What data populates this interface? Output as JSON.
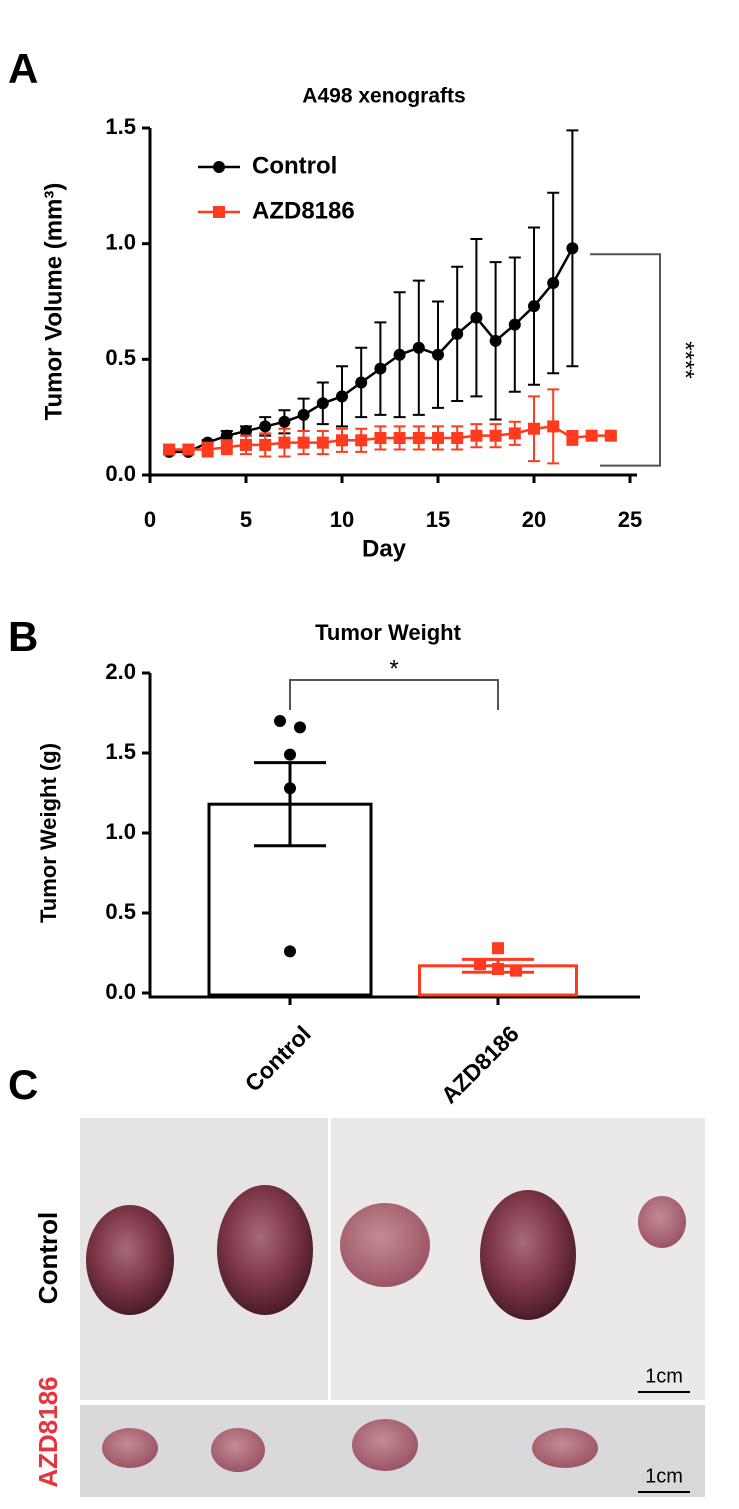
{
  "chart_data": [
    {
      "type": "line",
      "panel_label": "A",
      "title": "A498 xenografts",
      "xlabel": "Day",
      "ylabel": "Tumor Volume (mm³)",
      "x": [
        1,
        2,
        3,
        4,
        5,
        6,
        7,
        8,
        9,
        10,
        11,
        12,
        13,
        14,
        15,
        16,
        17,
        18,
        19,
        20,
        21,
        22,
        23,
        24
      ],
      "series": [
        {
          "name": "Control",
          "color": "#000000",
          "marker": "circle",
          "values": [
            0.1,
            0.1,
            0.14,
            0.17,
            0.19,
            0.21,
            0.23,
            0.26,
            0.31,
            0.34,
            0.4,
            0.46,
            0.52,
            0.55,
            0.52,
            0.61,
            0.68,
            0.58,
            0.65,
            0.73,
            0.83,
            0.98,
            null,
            null
          ],
          "errors": [
            0.01,
            0.01,
            0.01,
            0.02,
            0.02,
            0.04,
            0.05,
            0.07,
            0.09,
            0.13,
            0.15,
            0.2,
            0.27,
            0.29,
            0.23,
            0.29,
            0.34,
            0.34,
            0.29,
            0.34,
            0.39,
            0.51,
            null,
            null
          ]
        },
        {
          "name": "AZD8186",
          "color": "#ff3b1f",
          "marker": "square",
          "values": [
            0.11,
            0.11,
            0.11,
            0.12,
            0.13,
            0.13,
            0.14,
            0.14,
            0.14,
            0.15,
            0.15,
            0.16,
            0.16,
            0.16,
            0.16,
            0.16,
            0.17,
            0.17,
            0.18,
            0.2,
            0.21,
            0.16,
            0.17,
            0.17
          ],
          "errors": [
            0.02,
            0.02,
            0.03,
            0.03,
            0.04,
            0.05,
            0.06,
            0.05,
            0.05,
            0.05,
            0.05,
            0.05,
            0.05,
            0.05,
            0.05,
            0.05,
            0.05,
            0.05,
            0.05,
            0.14,
            0.16,
            0.03,
            0.01,
            0.01
          ]
        }
      ],
      "xlim": [
        0,
        25
      ],
      "xticks": [
        0,
        5,
        10,
        15,
        20,
        25
      ],
      "ylim": [
        0,
        1.5
      ],
      "yticks": [
        {
          "value": 0,
          "label": "0.0"
        },
        0.5,
        {
          "value": 1,
          "label": "1.0"
        },
        1.5
      ],
      "legend": "upper left",
      "annotation": "****"
    },
    {
      "type": "bar",
      "panel_label": "B",
      "title": "Tumor Weight",
      "ylabel": "Tumor Weight (g)",
      "categories": [
        "Control",
        "AZD8186"
      ],
      "colors": [
        "#000000",
        "#ff3b1f"
      ],
      "values": [
        1.18,
        0.17
      ],
      "errors": [
        0.26,
        0.04
      ],
      "points": [
        [
          1.7,
          1.66,
          1.49,
          1.28,
          0.26
        ],
        [
          0.28,
          0.18,
          0.15,
          0.14
        ]
      ],
      "ylim": [
        0,
        2
      ],
      "yticks": [
        {
          "value": 0,
          "label": "0.0"
        },
        0.5,
        {
          "value": 1,
          "label": "1.0"
        },
        1.5,
        {
          "value": 2,
          "label": "2.0"
        }
      ],
      "annotation": "*"
    }
  ],
  "photo_panel": {
    "panel_label": "C",
    "rows": [
      {
        "label": "Control",
        "scale": "1cm"
      },
      {
        "label": "AZD8186",
        "scale": "1cm"
      }
    ]
  }
}
